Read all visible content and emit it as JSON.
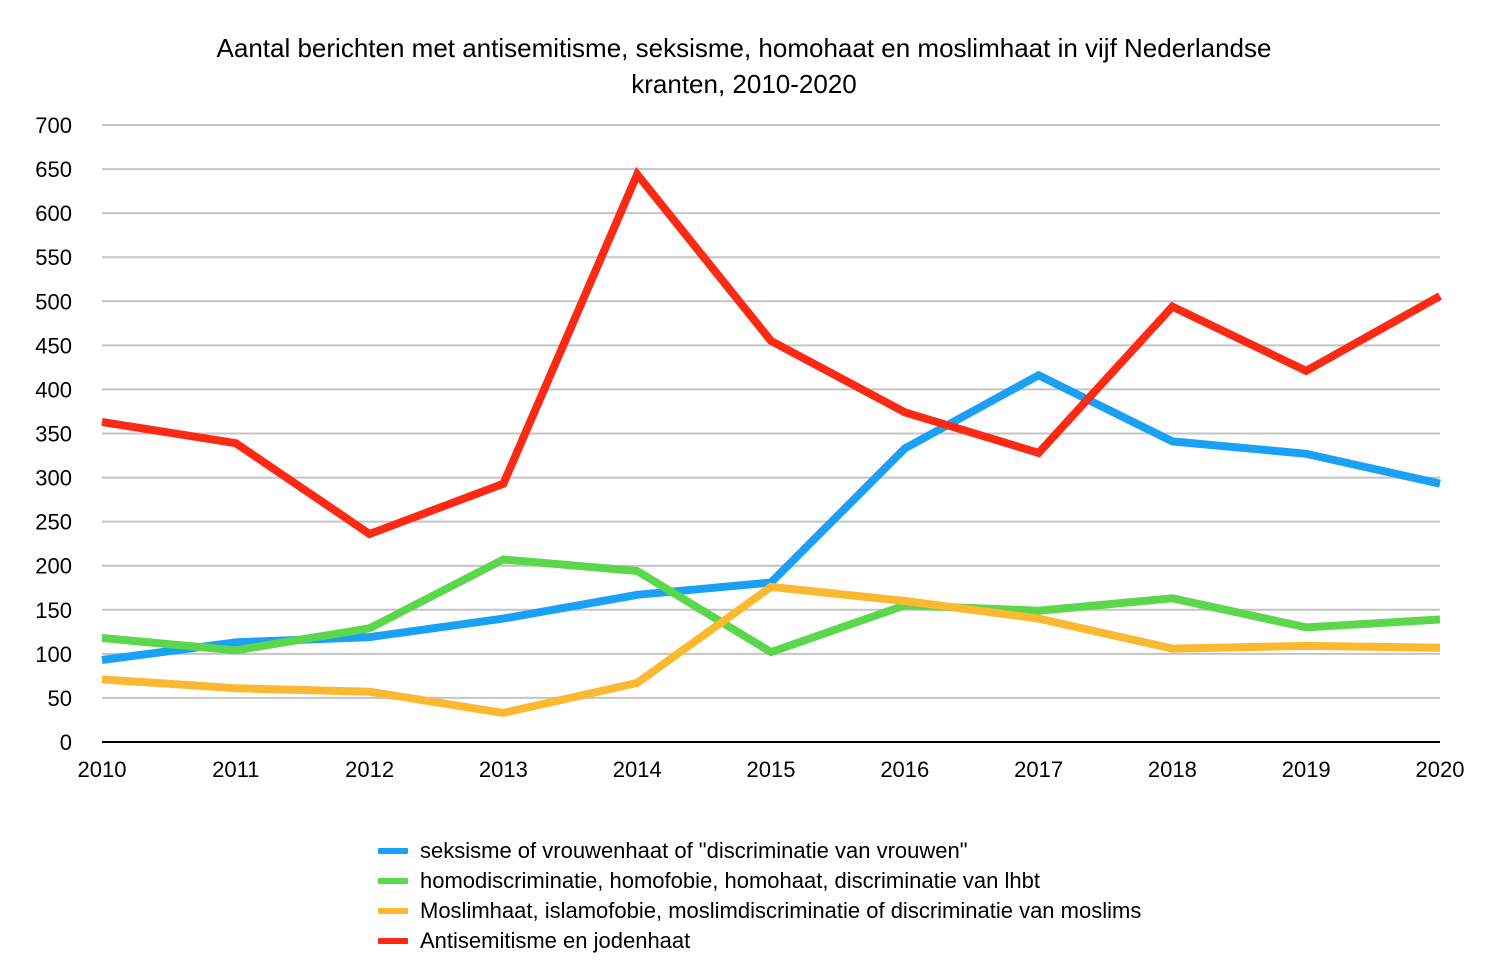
{
  "chart_data": {
    "type": "line",
    "title_lines": [
      "Aantal berichten met antisemitisme, seksisme, homohaat en moslimhaat in vijf Nederlandse",
      "kranten, 2010-2020"
    ],
    "x": [
      "2010",
      "2011",
      "2012",
      "2013",
      "2014",
      "2015",
      "2016",
      "2017",
      "2018",
      "2019",
      "2020"
    ],
    "y_ticks": [
      "0",
      "50",
      "100",
      "150",
      "200",
      "250",
      "300",
      "350",
      "400",
      "450",
      "500",
      "550",
      "600",
      "650",
      "700"
    ],
    "ylim": [
      0,
      700
    ],
    "grid": true,
    "legend_position": "bottom",
    "series": [
      {
        "name": "seksisme of vrouwenhaat of \"discriminatie van vrouwen\"",
        "color": "#1aa1f5",
        "values": [
          93,
          113,
          119,
          140,
          167,
          181,
          333,
          416,
          341,
          327,
          293
        ]
      },
      {
        "name": "homodiscriminatie, homofobie, homohaat, discriminatie van lhbt",
        "color": "#5bd74b",
        "values": [
          118,
          104,
          129,
          207,
          194,
          102,
          155,
          149,
          163,
          130,
          139
        ]
      },
      {
        "name": "Moslimhaat, islamofobie, moslimdiscriminatie of discriminatie van moslims",
        "color": "#fbb831",
        "values": [
          71,
          61,
          57,
          33,
          67,
          176,
          160,
          140,
          106,
          109,
          107
        ]
      },
      {
        "name": "Antisemitisme en jodenhaat",
        "color": "#fc2a14",
        "values": [
          363,
          339,
          236,
          293,
          644,
          455,
          374,
          328,
          494,
          421,
          506
        ]
      }
    ]
  }
}
